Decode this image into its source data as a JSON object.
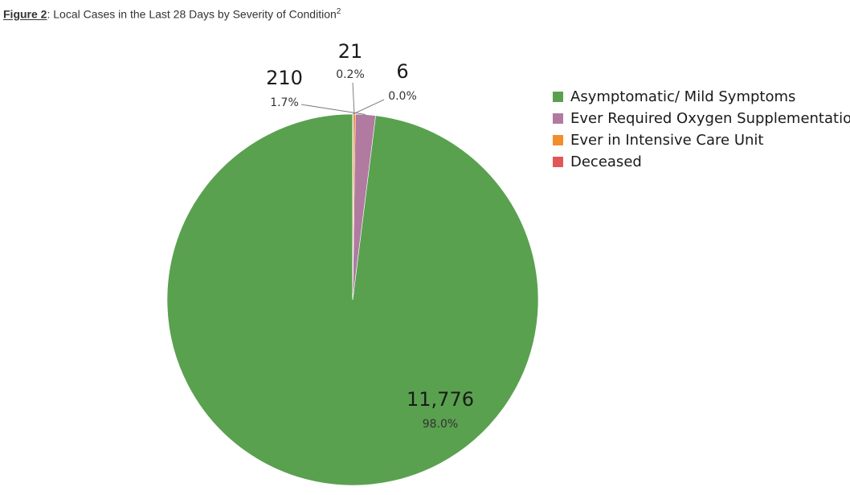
{
  "caption": {
    "figure_label": "Figure 2",
    "separator": ":",
    "text": " Local Cases in the Last 28 Days by Severity of Condition",
    "superscript": "2"
  },
  "chart_data": {
    "type": "pie",
    "title": "",
    "categories": [
      "Asymptomatic/ Mild Symptoms",
      "Ever Required Oxygen Supplementation",
      "Ever in Intensive Care Unit",
      "Deceased"
    ],
    "values": [
      11776,
      210,
      21,
      6
    ],
    "value_labels": [
      "11,776",
      "210",
      "21",
      "6"
    ],
    "percent_labels": [
      "98.0%",
      "1.7%",
      "0.2%",
      "0.0%"
    ],
    "colors": [
      "#59a14f",
      "#b07aa1",
      "#f28e2b",
      "#e15759"
    ],
    "legend_position": "right"
  }
}
